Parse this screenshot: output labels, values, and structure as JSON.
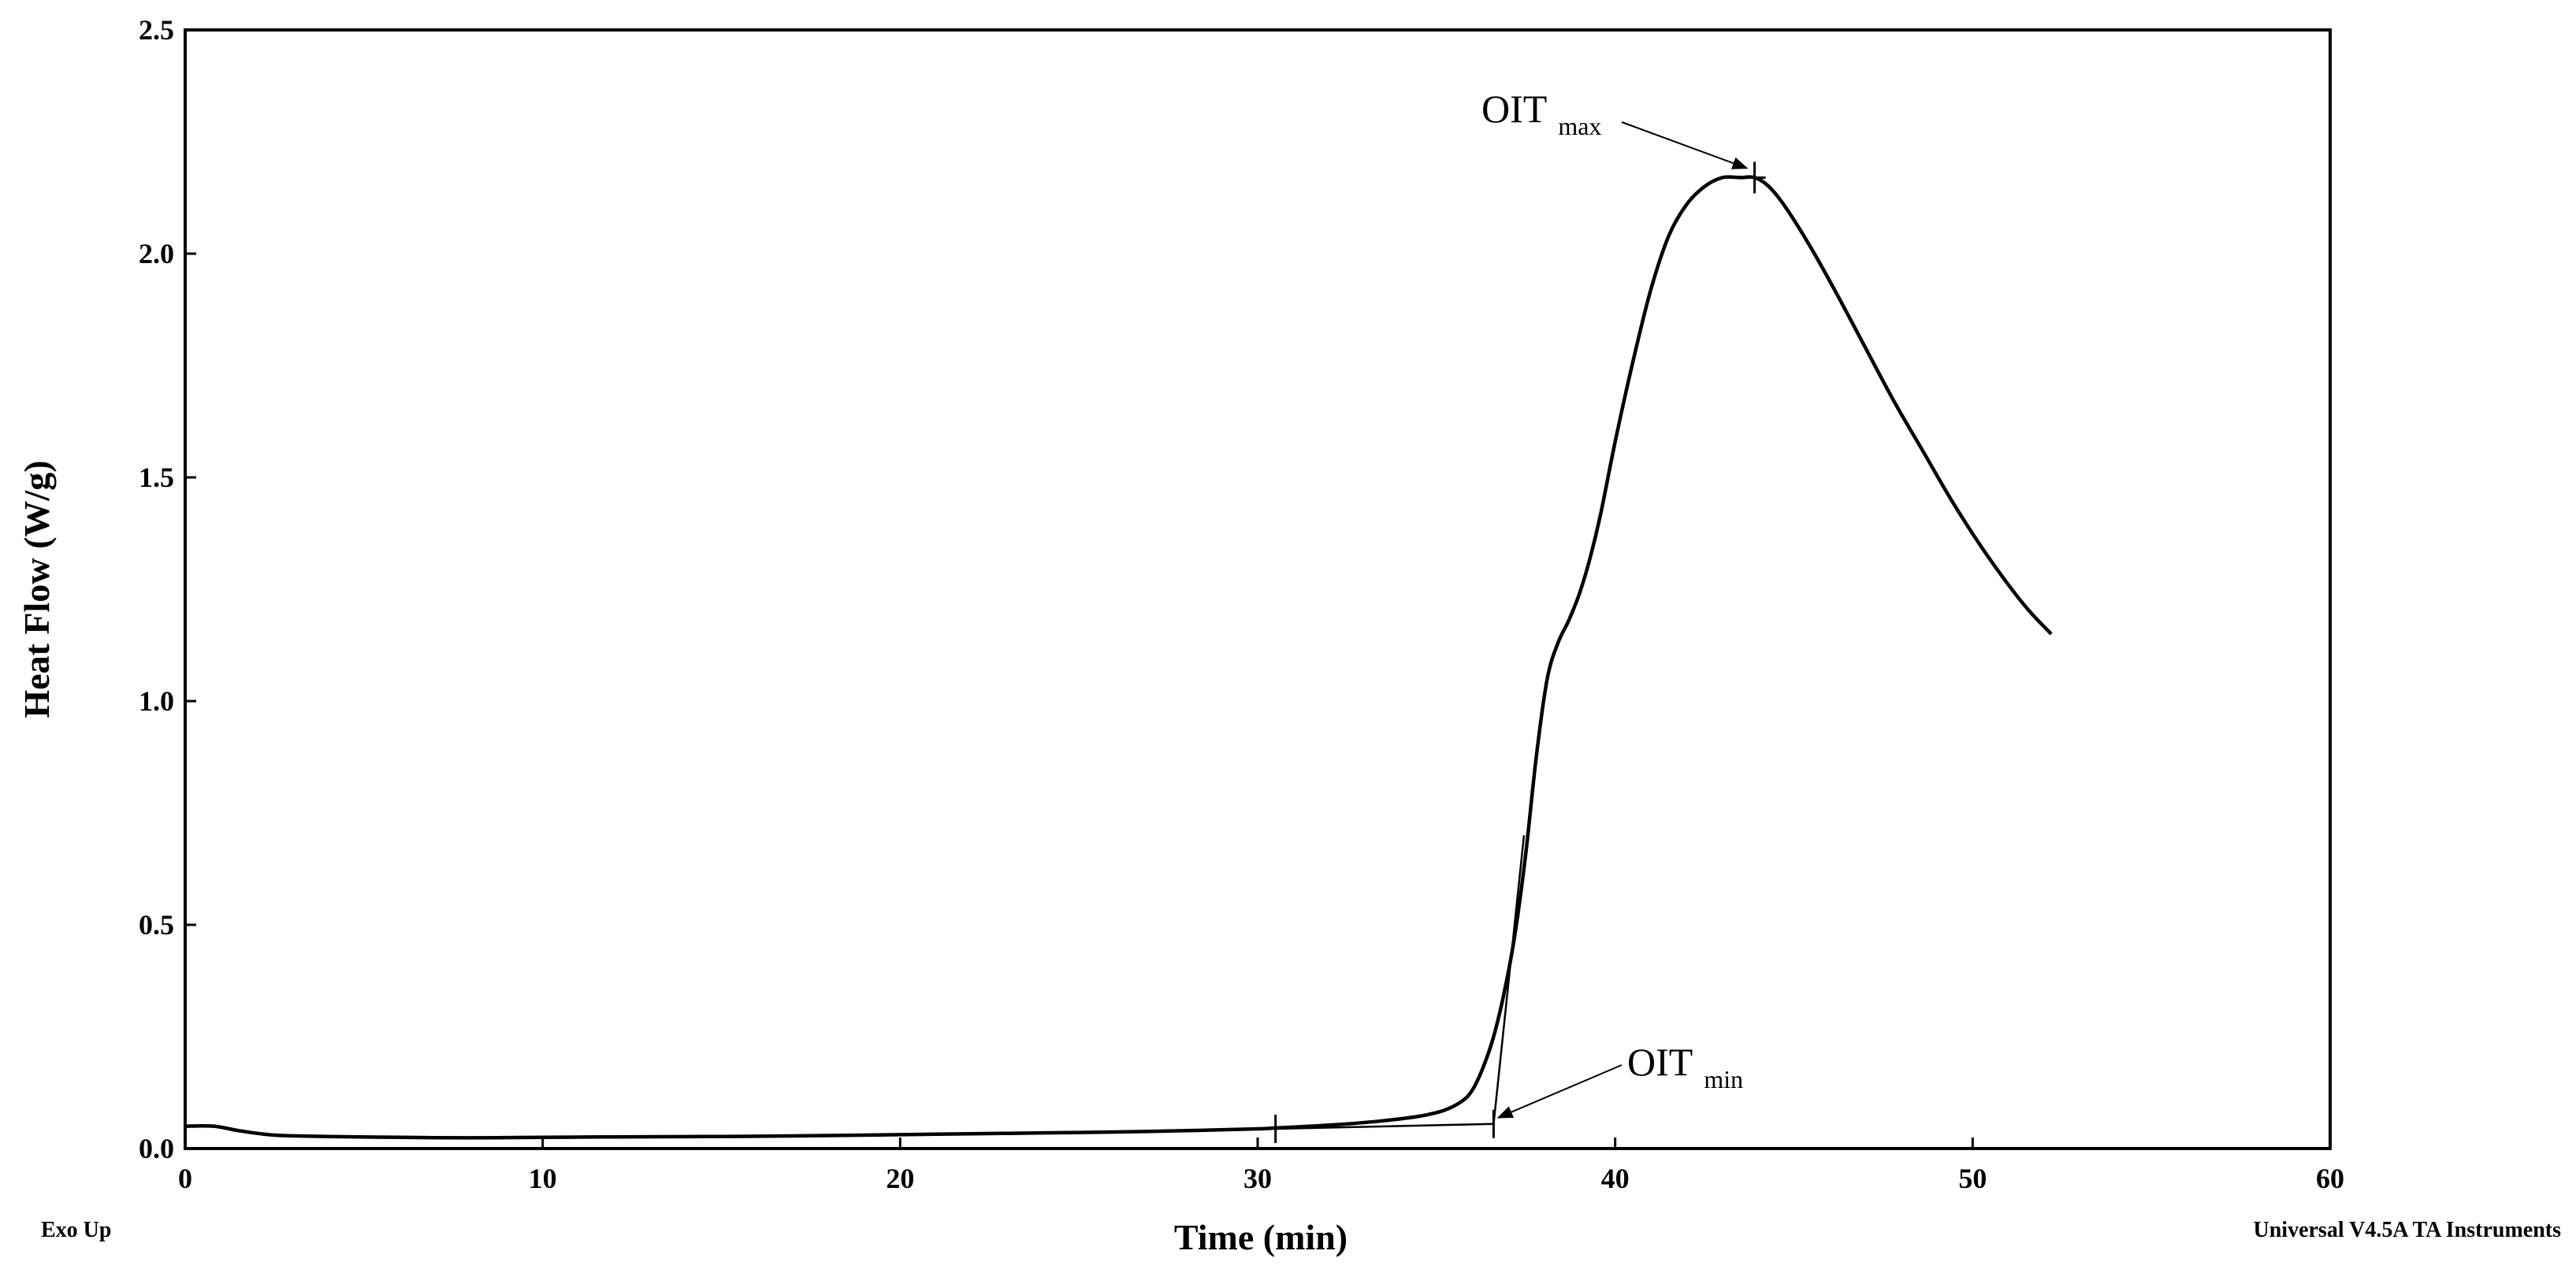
{
  "chart_data": {
    "type": "line",
    "xlabel": "Time (min)",
    "ylabel": "Heat Flow (W/g)",
    "xlim": [
      0,
      60
    ],
    "ylim": [
      0,
      2.5
    ],
    "x_ticks": [
      0,
      10,
      20,
      30,
      40,
      50,
      60
    ],
    "x_tick_labels": [
      "0",
      "10",
      "20",
      "30",
      "40",
      "50",
      "60"
    ],
    "y_ticks": [
      0,
      0.5,
      1.0,
      1.5,
      2.0,
      2.5
    ],
    "y_tick_labels": [
      "0.0",
      "0.5",
      "1.0",
      "1.5",
      "2.0",
      "2.5"
    ],
    "grid": false,
    "series": [
      {
        "x": [
          0,
          0.8,
          1.5,
          2.5,
          4,
          6,
          8,
          10,
          12,
          15,
          18,
          20,
          22,
          24,
          26,
          28,
          30,
          30.5,
          31.5,
          32.5,
          33.5,
          34.5,
          35.2,
          35.7,
          36.0,
          36.3,
          36.6,
          36.9,
          37.2,
          37.5,
          37.8,
          38.1,
          38.4,
          38.7,
          39.0,
          39.3,
          39.6,
          40.0,
          40.5,
          41.0,
          41.5,
          42.0,
          42.5,
          43.0,
          43.5,
          43.9,
          44.3,
          44.8,
          45.5,
          46.2,
          47.0,
          47.8,
          48.6,
          49.4,
          50.2,
          51.0,
          51.6,
          52.2
        ],
        "y": [
          0.05,
          0.05,
          0.04,
          0.03,
          0.027,
          0.025,
          0.024,
          0.025,
          0.026,
          0.027,
          0.029,
          0.031,
          0.033,
          0.035,
          0.037,
          0.04,
          0.044,
          0.046,
          0.05,
          0.055,
          0.062,
          0.072,
          0.085,
          0.105,
          0.13,
          0.18,
          0.25,
          0.35,
          0.48,
          0.66,
          0.88,
          1.05,
          1.13,
          1.18,
          1.24,
          1.32,
          1.42,
          1.58,
          1.76,
          1.92,
          2.04,
          2.11,
          2.15,
          2.17,
          2.17,
          2.17,
          2.15,
          2.1,
          2.01,
          1.91,
          1.79,
          1.67,
          1.56,
          1.45,
          1.35,
          1.26,
          1.2,
          1.15
        ]
      }
    ],
    "annotations": [
      {
        "label": "OIT",
        "sub": "max",
        "x": 43.9,
        "y": 2.17
      },
      {
        "label": "OIT",
        "sub": "min",
        "x": 36.6,
        "y": 0.055
      }
    ],
    "baseline_start": {
      "x": 30.5,
      "y": 0.044
    },
    "onset_point": {
      "x": 36.6,
      "y": 0.055
    }
  },
  "footer": {
    "left": "Exo Up",
    "right": "Universal V4.5A TA Instruments"
  }
}
